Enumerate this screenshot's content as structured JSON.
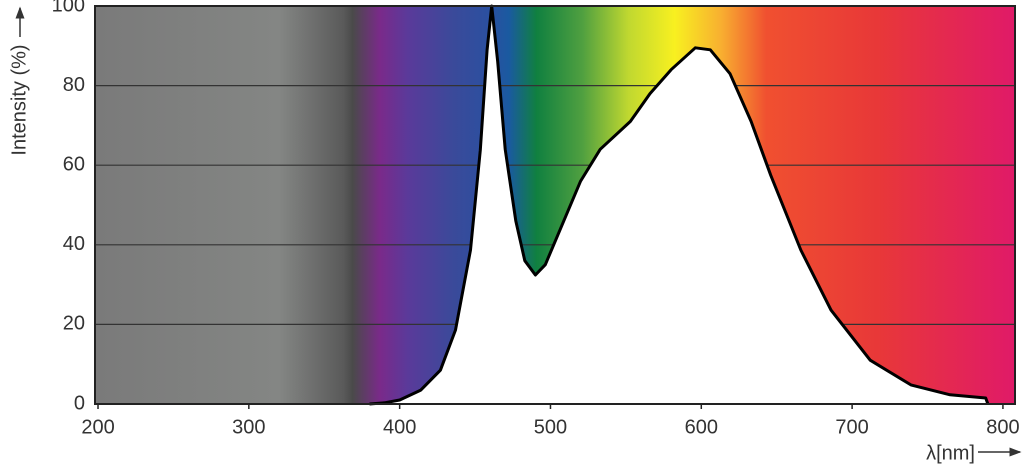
{
  "chart_data": {
    "type": "area",
    "x_label": "λ[nm]",
    "y_label": "Intensity (%)",
    "x": [
      380,
      390,
      400,
      414,
      427,
      437,
      447,
      453.5,
      458,
      461,
      465,
      470,
      477,
      483,
      490,
      496.6,
      506.6,
      520,
      533,
      553,
      566,
      580,
      596,
      606,
      619,
      633,
      646,
      666,
      686,
      712,
      739,
      765,
      788.6,
      790
    ],
    "values": [
      0,
      0.3,
      1,
      3.5,
      8.5,
      18.6,
      38.7,
      63.8,
      89,
      100,
      86,
      64,
      46,
      36,
      32.4,
      35,
      44,
      56,
      64,
      71,
      78,
      84,
      89.5,
      89,
      83,
      71,
      57.5,
      38.7,
      23.6,
      11,
      4.8,
      2.3,
      1.5,
      0
    ],
    "color": "#000000",
    "fill": "#ffffff",
    "xlim": [
      198,
      808
    ],
    "ylim": [
      0,
      100
    ],
    "xticks": [
      200,
      300,
      400,
      500,
      600,
      700,
      800
    ],
    "yticks": [
      0,
      20,
      40,
      60,
      80,
      100
    ],
    "grid": true
  }
}
